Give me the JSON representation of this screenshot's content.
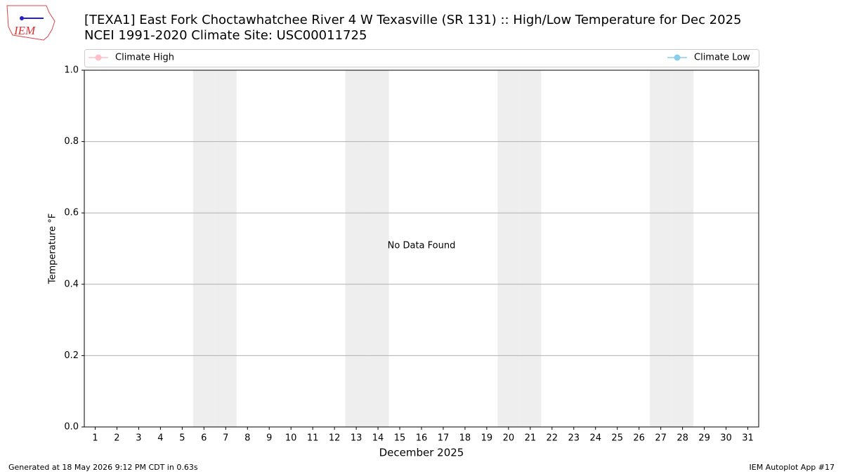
{
  "chart_data": {
    "type": "line",
    "title": "[TEXA1] East Fork Choctawhatchee River 4 W Texasville (SR 131) :: High/Low Temperature for Dec 2025",
    "subtitle": "NCEI 1991-2020 Climate Site: USC00011725",
    "logo_text": "IEM",
    "x_label": "December 2025",
    "y_label": "Temperature °F",
    "annotation": "No Data Found",
    "x": [
      1,
      2,
      3,
      4,
      5,
      6,
      7,
      8,
      9,
      10,
      11,
      12,
      13,
      14,
      15,
      16,
      17,
      18,
      19,
      20,
      21,
      22,
      23,
      24,
      25,
      26,
      27,
      28,
      29,
      30,
      31
    ],
    "series": [
      {
        "name": "Climate High",
        "color": "#ffc0cb",
        "values": [
          null,
          null,
          null,
          null,
          null,
          null,
          null,
          null,
          null,
          null,
          null,
          null,
          null,
          null,
          null,
          null,
          null,
          null,
          null,
          null,
          null,
          null,
          null,
          null,
          null,
          null,
          null,
          null,
          null,
          null,
          null
        ]
      },
      {
        "name": "Climate Low",
        "color": "#87ceeb",
        "values": [
          null,
          null,
          null,
          null,
          null,
          null,
          null,
          null,
          null,
          null,
          null,
          null,
          null,
          null,
          null,
          null,
          null,
          null,
          null,
          null,
          null,
          null,
          null,
          null,
          null,
          null,
          null,
          null,
          null,
          null,
          null
        ]
      }
    ],
    "shaded_x": [
      6,
      7,
      13,
      14,
      20,
      21,
      27,
      28
    ],
    "xlim": [
      0.5,
      31.5
    ],
    "xticks": [
      1,
      2,
      3,
      4,
      5,
      6,
      7,
      8,
      9,
      10,
      11,
      12,
      13,
      14,
      15,
      16,
      17,
      18,
      19,
      20,
      21,
      22,
      23,
      24,
      25,
      26,
      27,
      28,
      29,
      30,
      31
    ],
    "ylim": [
      0,
      1
    ],
    "yticks": [
      {
        "value": 0,
        "label": "0.0"
      },
      0.2,
      0.4,
      0.6,
      0.8,
      {
        "value": 1,
        "label": "1.0"
      }
    ],
    "grid": true,
    "footer_left": "Generated at 18 May 2026 9:12 PM CDT in 0.63s",
    "footer_right": "IEM Autoplot App #17"
  }
}
